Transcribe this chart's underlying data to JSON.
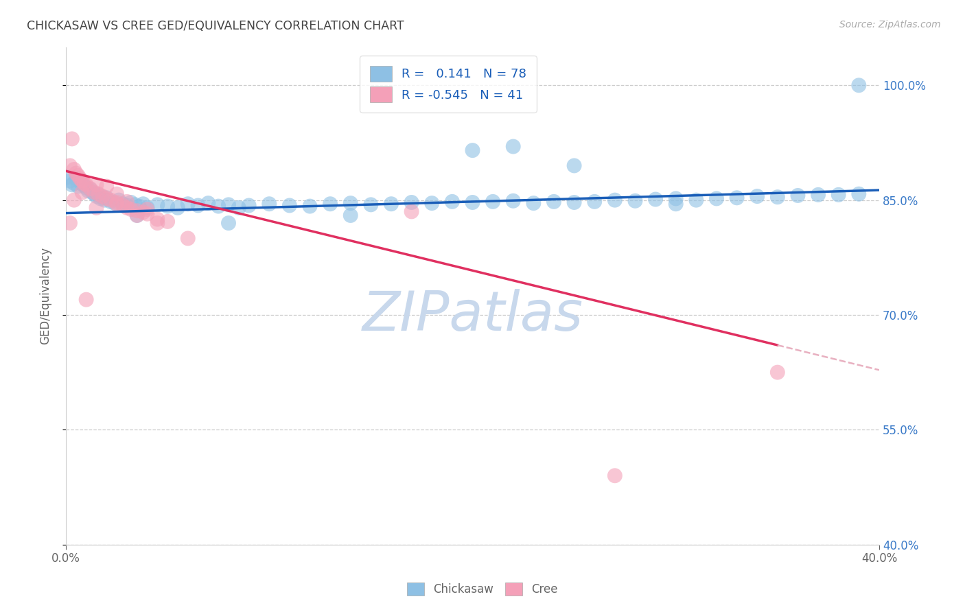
{
  "title": "CHICKASAW VS CREE GED/EQUIVALENCY CORRELATION CHART",
  "source": "Source: ZipAtlas.com",
  "ylabel": "GED/Equivalency",
  "xlim": [
    0.0,
    0.4
  ],
  "ylim": [
    0.4,
    1.05
  ],
  "ytick_vals": [
    0.4,
    0.55,
    0.7,
    0.85,
    1.0
  ],
  "ytick_labels": [
    "40.0%",
    "55.0%",
    "70.0%",
    "85.0%",
    "100.0%"
  ],
  "xtick_vals": [
    0.0,
    0.4
  ],
  "xtick_labels": [
    "0.0%",
    "40.0%"
  ],
  "chickasaw_R": 0.141,
  "chickasaw_N": 78,
  "cree_R": -0.545,
  "cree_N": 41,
  "chickasaw_color": "#8ec0e4",
  "cree_color": "#f4a0b8",
  "chickasaw_line_color": "#1a5eb8",
  "cree_line_color": "#e03060",
  "cree_dashed_color": "#e8b0c0",
  "watermark_color": "#c8d8ec",
  "background": "#ffffff",
  "grid_color": "#cccccc",
  "right_axis_color": "#3a7ac8",
  "title_color": "#444444",
  "source_color": "#aaaaaa",
  "label_color": "#666666",
  "legend_text_color": "#1a5eb8",
  "chickasaw_points": [
    [
      0.001,
      0.88
    ],
    [
      0.002,
      0.875
    ],
    [
      0.003,
      0.87
    ],
    [
      0.004,
      0.872
    ],
    [
      0.005,
      0.878
    ],
    [
      0.006,
      0.868
    ],
    [
      0.007,
      0.874
    ],
    [
      0.008,
      0.871
    ],
    [
      0.009,
      0.869
    ],
    [
      0.01,
      0.866
    ],
    [
      0.011,
      0.862
    ],
    [
      0.012,
      0.864
    ],
    [
      0.013,
      0.86
    ],
    [
      0.014,
      0.858
    ],
    [
      0.015,
      0.855
    ],
    [
      0.016,
      0.857
    ],
    [
      0.017,
      0.852
    ],
    [
      0.018,
      0.854
    ],
    [
      0.019,
      0.85
    ],
    [
      0.02,
      0.853
    ],
    [
      0.022,
      0.848
    ],
    [
      0.024,
      0.846
    ],
    [
      0.026,
      0.85
    ],
    [
      0.028,
      0.845
    ],
    [
      0.03,
      0.843
    ],
    [
      0.032,
      0.847
    ],
    [
      0.034,
      0.844
    ],
    [
      0.036,
      0.842
    ],
    [
      0.038,
      0.845
    ],
    [
      0.04,
      0.84
    ],
    [
      0.045,
      0.844
    ],
    [
      0.05,
      0.842
    ],
    [
      0.055,
      0.84
    ],
    [
      0.06,
      0.845
    ],
    [
      0.065,
      0.843
    ],
    [
      0.07,
      0.846
    ],
    [
      0.075,
      0.842
    ],
    [
      0.08,
      0.844
    ],
    [
      0.085,
      0.84
    ],
    [
      0.09,
      0.843
    ],
    [
      0.1,
      0.845
    ],
    [
      0.11,
      0.843
    ],
    [
      0.12,
      0.842
    ],
    [
      0.13,
      0.845
    ],
    [
      0.14,
      0.846
    ],
    [
      0.15,
      0.844
    ],
    [
      0.16,
      0.845
    ],
    [
      0.17,
      0.847
    ],
    [
      0.18,
      0.846
    ],
    [
      0.19,
      0.848
    ],
    [
      0.2,
      0.847
    ],
    [
      0.21,
      0.848
    ],
    [
      0.22,
      0.849
    ],
    [
      0.23,
      0.846
    ],
    [
      0.24,
      0.848
    ],
    [
      0.25,
      0.847
    ],
    [
      0.26,
      0.848
    ],
    [
      0.27,
      0.85
    ],
    [
      0.28,
      0.849
    ],
    [
      0.29,
      0.851
    ],
    [
      0.3,
      0.852
    ],
    [
      0.31,
      0.85
    ],
    [
      0.32,
      0.852
    ],
    [
      0.33,
      0.853
    ],
    [
      0.34,
      0.855
    ],
    [
      0.35,
      0.854
    ],
    [
      0.36,
      0.856
    ],
    [
      0.37,
      0.857
    ],
    [
      0.38,
      0.857
    ],
    [
      0.39,
      0.858
    ],
    [
      0.035,
      0.83
    ],
    [
      0.08,
      0.82
    ],
    [
      0.14,
      0.83
    ],
    [
      0.2,
      0.915
    ],
    [
      0.25,
      0.895
    ],
    [
      0.3,
      0.845
    ],
    [
      0.39,
      1.0
    ],
    [
      0.22,
      0.92
    ]
  ],
  "cree_points": [
    [
      0.002,
      0.895
    ],
    [
      0.003,
      0.93
    ],
    [
      0.004,
      0.89
    ],
    [
      0.005,
      0.885
    ],
    [
      0.006,
      0.882
    ],
    [
      0.007,
      0.878
    ],
    [
      0.008,
      0.875
    ],
    [
      0.009,
      0.872
    ],
    [
      0.01,
      0.87
    ],
    [
      0.012,
      0.865
    ],
    [
      0.014,
      0.86
    ],
    [
      0.016,
      0.858
    ],
    [
      0.018,
      0.855
    ],
    [
      0.02,
      0.852
    ],
    [
      0.022,
      0.85
    ],
    [
      0.025,
      0.847
    ],
    [
      0.028,
      0.843
    ],
    [
      0.03,
      0.84
    ],
    [
      0.032,
      0.838
    ],
    [
      0.035,
      0.836
    ],
    [
      0.038,
      0.834
    ],
    [
      0.04,
      0.832
    ],
    [
      0.045,
      0.825
    ],
    [
      0.05,
      0.822
    ],
    [
      0.004,
      0.85
    ],
    [
      0.008,
      0.86
    ],
    [
      0.015,
      0.84
    ],
    [
      0.025,
      0.845
    ],
    [
      0.035,
      0.83
    ],
    [
      0.045,
      0.82
    ],
    [
      0.015,
      0.87
    ],
    [
      0.02,
      0.868
    ],
    [
      0.025,
      0.858
    ],
    [
      0.03,
      0.848
    ],
    [
      0.04,
      0.838
    ],
    [
      0.06,
      0.8
    ],
    [
      0.002,
      0.82
    ],
    [
      0.17,
      0.835
    ],
    [
      0.35,
      0.625
    ],
    [
      0.27,
      0.49
    ],
    [
      0.01,
      0.72
    ]
  ]
}
